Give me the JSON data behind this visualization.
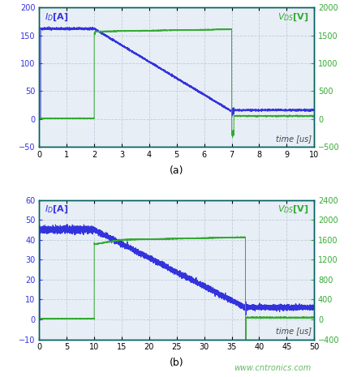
{
  "plot_a": {
    "title_label": "(a)",
    "xlabel": "time [us]",
    "xlim": [
      0,
      10
    ],
    "id_ylim": [
      -50,
      200
    ],
    "vds_ylim": [
      -500,
      2000
    ],
    "id_yticks": [
      -50,
      0,
      50,
      100,
      150,
      200
    ],
    "vds_yticks": [
      -500,
      0,
      500,
      1000,
      1500,
      2000
    ],
    "xticks": [
      0,
      1,
      2,
      3,
      4,
      5,
      6,
      7,
      8,
      9,
      10
    ],
    "id_color": "#3333dd",
    "vds_color": "#33aa33",
    "axis_color": "#006060",
    "bg_color": "#e8eef5"
  },
  "plot_b": {
    "title_label": "(b)",
    "xlabel": "time [us]",
    "xlim": [
      0,
      50
    ],
    "id_ylim": [
      -10,
      60
    ],
    "vds_ylim": [
      -400,
      2400
    ],
    "id_yticks": [
      -10,
      0,
      10,
      20,
      30,
      40,
      50,
      60
    ],
    "vds_yticks": [
      -400,
      0,
      400,
      800,
      1200,
      1600,
      2000,
      2400
    ],
    "xticks": [
      0,
      5,
      10,
      15,
      20,
      25,
      30,
      35,
      40,
      45,
      50
    ],
    "id_color": "#3333dd",
    "vds_color": "#33aa33",
    "axis_color": "#006060",
    "bg_color": "#e8eef5",
    "watermark": "www.cntronics.com"
  }
}
